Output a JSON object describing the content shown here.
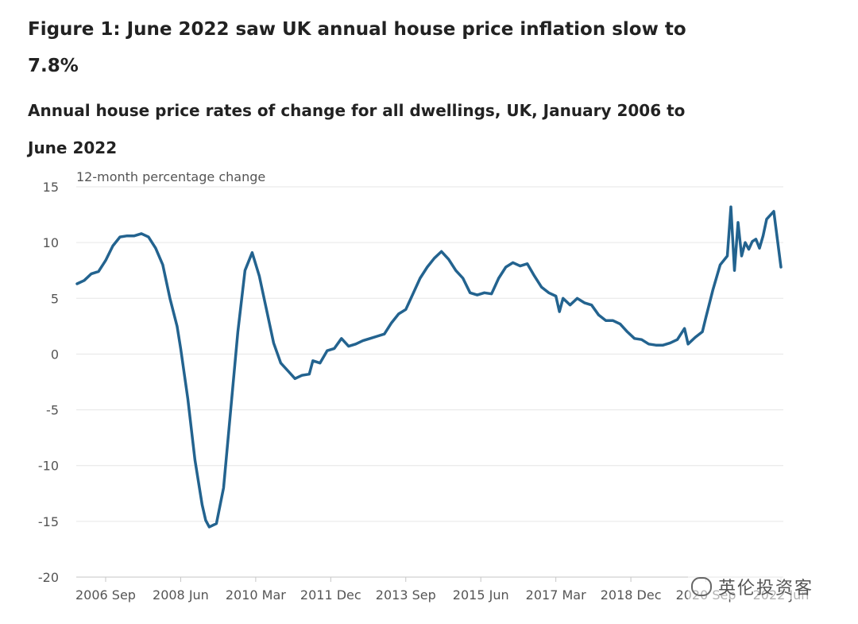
{
  "title": "Figure 1: June 2022 saw UK annual house price inflation slow to 7.8%",
  "subtitle": "Annual house price rates of change for all dwellings, UK, January 2006 to June 2022",
  "watermark": "英伦投资客",
  "colors": {
    "line": "#23638f",
    "grid": "#e6e6e6",
    "axis": "#c6c6c6",
    "text": "#222222",
    "tick": "#555555"
  },
  "chart_data": {
    "type": "line",
    "ylabel": "12-month percentage change",
    "ylim": [
      -20,
      15
    ],
    "yticks": [
      15,
      10,
      5,
      0,
      -5,
      -10,
      -15,
      -20
    ],
    "xtick_labels": [
      "2006 Sep",
      "2008 Jun",
      "2010 Mar",
      "2011 Dec",
      "2013 Sep",
      "2015 Jun",
      "2017 Mar",
      "2018 Dec",
      "2020 Sep",
      "2022 Jun"
    ],
    "x_start": "2006 Jan",
    "x_end": "2022 Jun",
    "grid": true,
    "series": [
      {
        "color": "#23638f",
        "points": [
          [
            "2006-01",
            6.3
          ],
          [
            "2006-03",
            6.6
          ],
          [
            "2006-05",
            7.2
          ],
          [
            "2006-07",
            7.4
          ],
          [
            "2006-09",
            8.4
          ],
          [
            "2006-11",
            9.7
          ],
          [
            "2007-01",
            10.5
          ],
          [
            "2007-03",
            10.6
          ],
          [
            "2007-05",
            10.6
          ],
          [
            "2007-07",
            10.8
          ],
          [
            "2007-09",
            10.5
          ],
          [
            "2007-11",
            9.5
          ],
          [
            "2008-01",
            8.0
          ],
          [
            "2008-03",
            5.0
          ],
          [
            "2008-05",
            2.5
          ],
          [
            "2008-06",
            0.5
          ],
          [
            "2008-08",
            -4.0
          ],
          [
            "2008-10",
            -9.5
          ],
          [
            "2008-12",
            -13.5
          ],
          [
            "2009-01",
            -14.9
          ],
          [
            "2009-02",
            -15.5
          ],
          [
            "2009-04",
            -15.2
          ],
          [
            "2009-06",
            -12.0
          ],
          [
            "2009-08",
            -5.0
          ],
          [
            "2009-10",
            2.0
          ],
          [
            "2009-12",
            7.5
          ],
          [
            "2010-02",
            9.1
          ],
          [
            "2010-04",
            7.0
          ],
          [
            "2010-06",
            4.0
          ],
          [
            "2010-08",
            1.0
          ],
          [
            "2010-10",
            -0.8
          ],
          [
            "2010-12",
            -1.5
          ],
          [
            "2011-02",
            -2.2
          ],
          [
            "2011-04",
            -1.9
          ],
          [
            "2011-06",
            -1.8
          ],
          [
            "2011-07",
            -0.6
          ],
          [
            "2011-09",
            -0.8
          ],
          [
            "2011-11",
            0.3
          ],
          [
            "2012-01",
            0.5
          ],
          [
            "2012-03",
            1.4
          ],
          [
            "2012-05",
            0.7
          ],
          [
            "2012-07",
            0.9
          ],
          [
            "2012-09",
            1.2
          ],
          [
            "2012-11",
            1.4
          ],
          [
            "2013-01",
            1.6
          ],
          [
            "2013-03",
            1.8
          ],
          [
            "2013-05",
            2.8
          ],
          [
            "2013-07",
            3.6
          ],
          [
            "2013-09",
            4.0
          ],
          [
            "2013-11",
            5.4
          ],
          [
            "2014-01",
            6.8
          ],
          [
            "2014-03",
            7.8
          ],
          [
            "2014-05",
            8.6
          ],
          [
            "2014-07",
            9.2
          ],
          [
            "2014-09",
            8.5
          ],
          [
            "2014-11",
            7.5
          ],
          [
            "2015-01",
            6.8
          ],
          [
            "2015-03",
            5.5
          ],
          [
            "2015-05",
            5.3
          ],
          [
            "2015-07",
            5.5
          ],
          [
            "2015-09",
            5.4
          ],
          [
            "2015-11",
            6.8
          ],
          [
            "2016-01",
            7.8
          ],
          [
            "2016-03",
            8.2
          ],
          [
            "2016-05",
            7.9
          ],
          [
            "2016-07",
            8.1
          ],
          [
            "2016-09",
            7.0
          ],
          [
            "2016-11",
            6.0
          ],
          [
            "2017-01",
            5.5
          ],
          [
            "2017-03",
            5.2
          ],
          [
            "2017-04",
            3.8
          ],
          [
            "2017-05",
            5.0
          ],
          [
            "2017-07",
            4.4
          ],
          [
            "2017-09",
            5.0
          ],
          [
            "2017-11",
            4.6
          ],
          [
            "2018-01",
            4.4
          ],
          [
            "2018-03",
            3.5
          ],
          [
            "2018-05",
            3.0
          ],
          [
            "2018-07",
            3.0
          ],
          [
            "2018-09",
            2.7
          ],
          [
            "2018-11",
            2.0
          ],
          [
            "2019-01",
            1.4
          ],
          [
            "2019-03",
            1.3
          ],
          [
            "2019-05",
            0.9
          ],
          [
            "2019-07",
            0.8
          ],
          [
            "2019-09",
            0.8
          ],
          [
            "2019-11",
            1.0
          ],
          [
            "2020-01",
            1.3
          ],
          [
            "2020-03",
            2.3
          ],
          [
            "2020-04",
            0.9
          ],
          [
            "2020-06",
            1.5
          ],
          [
            "2020-08",
            2.0
          ],
          [
            "2020-09",
            3.3
          ],
          [
            "2020-11",
            5.8
          ],
          [
            "2021-01",
            8.0
          ],
          [
            "2021-03",
            8.8
          ],
          [
            "2021-04",
            13.2
          ],
          [
            "2021-05",
            7.5
          ],
          [
            "2021-06",
            11.8
          ],
          [
            "2021-07",
            8.8
          ],
          [
            "2021-08",
            10.0
          ],
          [
            "2021-09",
            9.4
          ],
          [
            "2021-10",
            10.1
          ],
          [
            "2021-11",
            10.3
          ],
          [
            "2021-12",
            9.5
          ],
          [
            "2022-01",
            10.6
          ],
          [
            "2022-02",
            12.1
          ],
          [
            "2022-04",
            12.8
          ],
          [
            "2022-06",
            7.8
          ]
        ]
      }
    ]
  }
}
